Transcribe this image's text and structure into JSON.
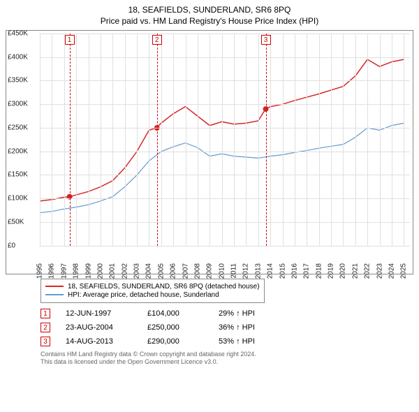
{
  "title": "18, SEAFIELDS, SUNDERLAND, SR6 8PQ",
  "subtitle": "Price paid vs. HM Land Registry's House Price Index (HPI)",
  "chart": {
    "type": "line",
    "background_color": "#ffffff",
    "grid_color": "#e0e0e0",
    "border_color": "#888888",
    "x_years": [
      1995,
      1996,
      1997,
      1998,
      1999,
      2000,
      2001,
      2002,
      2003,
      2004,
      2005,
      2006,
      2007,
      2008,
      2009,
      2010,
      2011,
      2012,
      2013,
      2014,
      2015,
      2016,
      2017,
      2018,
      2019,
      2020,
      2021,
      2022,
      2023,
      2024,
      2025
    ],
    "xlim": [
      1995,
      2025.5
    ],
    "ylim": [
      0,
      450000
    ],
    "ytick_step": 50000,
    "yticks": [
      "£0",
      "£50K",
      "£100K",
      "£150K",
      "£200K",
      "£250K",
      "£300K",
      "£350K",
      "£400K",
      "£450K"
    ],
    "label_fontsize": 10,
    "series": [
      {
        "id": "price_paid",
        "label": "18, SEAFIELDS, SUNDERLAND, SR6 8PQ (detached house)",
        "color": "#d62728",
        "line_width": 1.5,
        "points_x": [
          1995,
          1996,
          1997,
          1997.5,
          1998,
          1999,
          2000,
          2001,
          2002,
          2003,
          2004,
          2004.6,
          2005,
          2006,
          2007,
          2008,
          2009,
          2010,
          2011,
          2012,
          2013,
          2013.6,
          2014,
          2015,
          2016,
          2017,
          2018,
          2019,
          2020,
          2021,
          2022,
          2023,
          2024,
          2025
        ],
        "points_y": [
          95000,
          98000,
          103000,
          104000,
          108000,
          115000,
          125000,
          138000,
          165000,
          200000,
          245000,
          250000,
          260000,
          280000,
          295000,
          275000,
          255000,
          263000,
          258000,
          260000,
          265000,
          290000,
          295000,
          300000,
          308000,
          315000,
          322000,
          330000,
          338000,
          360000,
          395000,
          380000,
          390000,
          395000
        ]
      },
      {
        "id": "hpi",
        "label": "HPI: Average price, detached house, Sunderland",
        "color": "#6699cc",
        "line_width": 1.2,
        "points_x": [
          1995,
          1996,
          1997,
          1998,
          1999,
          2000,
          2001,
          2002,
          2003,
          2004,
          2005,
          2006,
          2007,
          2008,
          2009,
          2010,
          2011,
          2012,
          2013,
          2014,
          2015,
          2016,
          2017,
          2018,
          2019,
          2020,
          2021,
          2022,
          2023,
          2024,
          2025
        ],
        "points_y": [
          70000,
          73000,
          78000,
          82000,
          87000,
          95000,
          104000,
          125000,
          150000,
          180000,
          200000,
          210000,
          218000,
          208000,
          190000,
          195000,
          190000,
          188000,
          186000,
          190000,
          193000,
          198000,
          202000,
          207000,
          211000,
          215000,
          230000,
          250000,
          245000,
          255000,
          260000
        ]
      }
    ],
    "sale_markers": [
      {
        "n": "1",
        "year": 1997.45,
        "value": 104000
      },
      {
        "n": "2",
        "year": 2004.65,
        "value": 250000
      },
      {
        "n": "3",
        "year": 2013.62,
        "value": 290000
      }
    ],
    "marker_color": "#cc0000"
  },
  "legend": {
    "items": [
      {
        "color": "#d62728",
        "label": "18, SEAFIELDS, SUNDERLAND, SR6 8PQ (detached house)"
      },
      {
        "color": "#6699cc",
        "label": "HPI: Average price, detached house, Sunderland"
      }
    ]
  },
  "sales": [
    {
      "n": "1",
      "date": "12-JUN-1997",
      "price": "£104,000",
      "delta": "29% ↑ HPI"
    },
    {
      "n": "2",
      "date": "23-AUG-2004",
      "price": "£250,000",
      "delta": "36% ↑ HPI"
    },
    {
      "n": "3",
      "date": "14-AUG-2013",
      "price": "£290,000",
      "delta": "53% ↑ HPI"
    }
  ],
  "footnote_line1": "Contains HM Land Registry data © Crown copyright and database right 2024.",
  "footnote_line2": "This data is licensed under the Open Government Licence v3.0."
}
